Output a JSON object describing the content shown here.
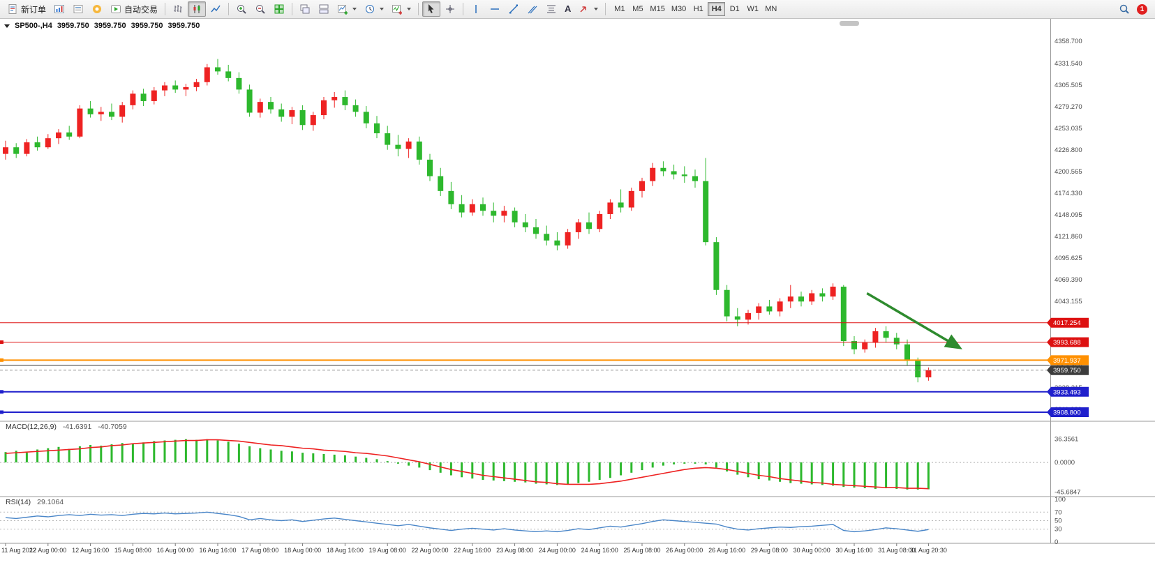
{
  "toolbar": {
    "new_order": "新订单",
    "autotrading": "自动交易",
    "text_tool": "A",
    "timeframes": [
      "M1",
      "M5",
      "M15",
      "M30",
      "H1",
      "H4",
      "D1",
      "W1",
      "MN"
    ],
    "active_timeframe": "H4",
    "notification": "1"
  },
  "header": {
    "symbol": "SP500-,H4",
    "open": "3959.750",
    "high": "3959.750",
    "low": "3959.750",
    "close": "3959.750"
  },
  "price_scale": {
    "labels": [
      "4358.700",
      "4331.540",
      "4305.505",
      "4279.270",
      "4253.035",
      "4226.800",
      "4200.565",
      "4174.330",
      "4148.095",
      "4121.860",
      "4095.625",
      "4069.390",
      "4043.155",
      "4016.920",
      "3990.685",
      "3964.450",
      "3938.215",
      "3911.980"
    ]
  },
  "price_lines": [
    {
      "price": 4017.254,
      "label": "4017.254",
      "color": "#dd1111",
      "tag_bg": "#dd1111",
      "width": 1,
      "style": "solid",
      "marker": false
    },
    {
      "price": 3993.688,
      "label": "3993.688",
      "color": "#dd1111",
      "tag_bg": "#dd1111",
      "width": 1,
      "style": "solid",
      "marker": true
    },
    {
      "price": 3971.937,
      "label": "3971.937",
      "color": "#ff9000",
      "tag_bg": "#ff9000",
      "width": 2,
      "style": "solid",
      "marker": true
    },
    {
      "price": 3965.65,
      "label": "",
      "color": "#333333",
      "tag_bg": "",
      "width": 1,
      "style": "solid",
      "marker": false
    },
    {
      "price": 3959.75,
      "label": "3959.750",
      "color": "#909090",
      "tag_bg": "#3c3c3c",
      "width": 1,
      "style": "dash",
      "marker": false
    },
    {
      "price": 3933.493,
      "label": "3933.493",
      "color": "#2020cc",
      "tag_bg": "#2020cc",
      "width": 2,
      "style": "solid",
      "marker": true
    },
    {
      "price": 3908.8,
      "label": "3908.800",
      "color": "#2020cc",
      "tag_bg": "#2020cc",
      "width": 2,
      "style": "solid",
      "marker": true
    }
  ],
  "chart_data": {
    "main": {
      "type": "candlestick",
      "symbol": "SP500-",
      "timeframe": "H4",
      "ylim": [
        3908.8,
        4358.7
      ],
      "up_color": "#ee2222",
      "down_color": "#2db82d",
      "time_labels": [
        "11 Aug 2022",
        "12 Aug 00:00",
        "12 Aug 16:00",
        "15 Aug 08:00",
        "16 Aug 00:00",
        "16 Aug 16:00",
        "17 Aug 08:00",
        "18 Aug 00:00",
        "18 Aug 16:00",
        "19 Aug 08:00",
        "22 Aug 00:00",
        "22 Aug 16:00",
        "23 Aug 08:00",
        "24 Aug 00:00",
        "24 Aug 16:00",
        "25 Aug 08:00",
        "26 Aug 00:00",
        "26 Aug 16:00",
        "29 Aug 08:00",
        "30 Aug 00:00",
        "30 Aug 16:00",
        "31 Aug 08:00",
        "31 Aug 20:30"
      ],
      "ohlc": [
        [
          4222,
          4238,
          4215,
          4230
        ],
        [
          4230,
          4235,
          4217,
          4222
        ],
        [
          4222,
          4240,
          4219,
          4236
        ],
        [
          4236,
          4243,
          4226,
          4230
        ],
        [
          4230,
          4246,
          4228,
          4241
        ],
        [
          4241,
          4252,
          4234,
          4248
        ],
        [
          4248,
          4256,
          4239,
          4243
        ],
        [
          4243,
          4281,
          4241,
          4277
        ],
        [
          4277,
          4286,
          4266,
          4270
        ],
        [
          4270,
          4279,
          4262,
          4273
        ],
        [
          4273,
          4283,
          4263,
          4267
        ],
        [
          4267,
          4285,
          4260,
          4281
        ],
        [
          4281,
          4299,
          4276,
          4295
        ],
        [
          4295,
          4301,
          4280,
          4286
        ],
        [
          4286,
          4303,
          4282,
          4299
        ],
        [
          4299,
          4309,
          4292,
          4305
        ],
        [
          4305,
          4311,
          4296,
          4300
        ],
        [
          4300,
          4307,
          4292,
          4303
        ],
        [
          4303,
          4313,
          4298,
          4309
        ],
        [
          4309,
          4331,
          4305,
          4327
        ],
        [
          4327,
          4337,
          4318,
          4322
        ],
        [
          4322,
          4330,
          4310,
          4314
        ],
        [
          4314,
          4321,
          4295,
          4300
        ],
        [
          4300,
          4306,
          4267,
          4272
        ],
        [
          4272,
          4289,
          4266,
          4285
        ],
        [
          4285,
          4291,
          4271,
          4276
        ],
        [
          4276,
          4283,
          4261,
          4267
        ],
        [
          4267,
          4279,
          4258,
          4275
        ],
        [
          4275,
          4281,
          4251,
          4257
        ],
        [
          4257,
          4273,
          4250,
          4269
        ],
        [
          4269,
          4291,
          4264,
          4287
        ],
        [
          4287,
          4297,
          4278,
          4291
        ],
        [
          4291,
          4299,
          4275,
          4281
        ],
        [
          4281,
          4288,
          4267,
          4273
        ],
        [
          4273,
          4280,
          4253,
          4259
        ],
        [
          4259,
          4268,
          4241,
          4247
        ],
        [
          4247,
          4256,
          4227,
          4233
        ],
        [
          4233,
          4245,
          4219,
          4228
        ],
        [
          4228,
          4241,
          4217,
          4237
        ],
        [
          4237,
          4243,
          4209,
          4215
        ],
        [
          4215,
          4222,
          4189,
          4195
        ],
        [
          4195,
          4205,
          4171,
          4177
        ],
        [
          4177,
          4188,
          4155,
          4161
        ],
        [
          4161,
          4172,
          4145,
          4151
        ],
        [
          4151,
          4167,
          4147,
          4161
        ],
        [
          4161,
          4169,
          4147,
          4153
        ],
        [
          4153,
          4163,
          4139,
          4147
        ],
        [
          4147,
          4159,
          4139,
          4153
        ],
        [
          4153,
          4157,
          4133,
          4139
        ],
        [
          4139,
          4149,
          4127,
          4133
        ],
        [
          4133,
          4143,
          4119,
          4125
        ],
        [
          4125,
          4135,
          4111,
          4117
        ],
        [
          4117,
          4127,
          4105,
          4111
        ],
        [
          4111,
          4131,
          4107,
          4127
        ],
        [
          4127,
          4143,
          4119,
          4139
        ],
        [
          4139,
          4151,
          4125,
          4131
        ],
        [
          4131,
          4153,
          4127,
          4149
        ],
        [
          4149,
          4167,
          4143,
          4163
        ],
        [
          4163,
          4179,
          4151,
          4157
        ],
        [
          4157,
          4181,
          4153,
          4177
        ],
        [
          4177,
          4193,
          4169,
          4189
        ],
        [
          4189,
          4211,
          4183,
          4205
        ],
        [
          4205,
          4213,
          4195,
          4201
        ],
        [
          4201,
          4209,
          4191,
          4197
        ],
        [
          4197,
          4207,
          4187,
          4195
        ],
        [
          4195,
          4203,
          4181,
          4189
        ],
        [
          4189,
          4217,
          4111,
          4115
        ],
        [
          4115,
          4121,
          4051,
          4057
        ],
        [
          4057,
          4063,
          4019,
          4025
        ],
        [
          4025,
          4035,
          4013,
          4021
        ],
        [
          4021,
          4033,
          4015,
          4029
        ],
        [
          4029,
          4041,
          4021,
          4037
        ],
        [
          4037,
          4045,
          4027,
          4031
        ],
        [
          4031,
          4047,
          4025,
          4043
        ],
        [
          4043,
          4063,
          4035,
          4049
        ],
        [
          4049,
          4055,
          4037,
          4043
        ],
        [
          4043,
          4057,
          4039,
          4053
        ],
        [
          4053,
          4059,
          4043,
          4049
        ],
        [
          4049,
          4065,
          4045,
          4061
        ],
        [
          4061,
          4063,
          3989,
          3995
        ],
        [
          3995,
          4001,
          3979,
          3985
        ],
        [
          3985,
          3997,
          3981,
          3993
        ],
        [
          3993,
          4011,
          3987,
          4007
        ],
        [
          4007,
          4013,
          3993,
          3999
        ],
        [
          3999,
          4005,
          3985,
          3991
        ],
        [
          3991,
          3997,
          3965,
          3971
        ],
        [
          3971,
          3975,
          3945,
          3951
        ],
        [
          3951,
          3963,
          3947,
          3959.75
        ]
      ],
      "annotation_arrow": {
        "from_bar": 81.2,
        "from_price": 4053,
        "to_bar": 89.8,
        "to_price": 3988,
        "color": "#2e8b2e"
      }
    },
    "macd": {
      "type": "bar+line",
      "label": "MACD(12,26,9)",
      "value_main": "-41.6391",
      "value_signal": "-40.7059",
      "histogram_color": "#2db82d",
      "signal_color": "#ee2222",
      "scale_labels": [
        "36.3561",
        "0.0000",
        "-45.6847"
      ],
      "scale_values": [
        36.3561,
        0,
        -45.6847
      ],
      "histogram": [
        16,
        18,
        15,
        20,
        22,
        24,
        21,
        25,
        27,
        26,
        28,
        30,
        29,
        31,
        33,
        34,
        35,
        36,
        35,
        36,
        34,
        32,
        29,
        25,
        22,
        20,
        18,
        17,
        15,
        14,
        13,
        12,
        11,
        9,
        7,
        5,
        2,
        -2,
        -5,
        -8,
        -12,
        -16,
        -20,
        -23,
        -25,
        -27,
        -28,
        -29,
        -30,
        -31,
        -33,
        -34,
        -35,
        -34,
        -32,
        -30,
        -27,
        -24,
        -20,
        -16,
        -12,
        -8,
        -5,
        -3,
        -2,
        -2,
        -3,
        -8,
        -14,
        -19,
        -23,
        -26,
        -28,
        -30,
        -32,
        -33,
        -34,
        -35,
        -36,
        -38,
        -39,
        -40,
        -41,
        -40,
        -41,
        -42,
        -42,
        -41.64
      ],
      "signal": [
        14,
        15,
        16,
        17,
        18,
        19,
        20,
        21,
        23,
        24,
        26,
        27,
        29,
        30,
        31,
        32,
        33,
        34,
        34,
        35,
        35,
        34,
        33,
        31,
        29,
        27,
        26,
        24,
        22,
        21,
        19,
        18,
        17,
        15,
        14,
        12,
        10,
        7,
        4,
        1,
        -3,
        -7,
        -11,
        -14,
        -17,
        -20,
        -22,
        -24,
        -26,
        -28,
        -30,
        -31,
        -33,
        -34,
        -34,
        -34,
        -33,
        -31,
        -29,
        -26,
        -23,
        -20,
        -17,
        -14,
        -11,
        -9,
        -8,
        -9,
        -11,
        -14,
        -17,
        -20,
        -22,
        -25,
        -27,
        -29,
        -31,
        -32,
        -34,
        -35,
        -36,
        -37,
        -38,
        -39,
        -39,
        -40,
        -40,
        -40.71
      ]
    },
    "rsi": {
      "type": "line",
      "label": "RSI(14)",
      "value": "29.1064",
      "line_color": "#4a86c8",
      "levels": [
        70,
        50,
        30
      ],
      "scale_labels": [
        "100",
        "70",
        "50",
        "30",
        "0"
      ],
      "values": [
        57,
        55,
        58,
        61,
        59,
        62,
        64,
        62,
        65,
        63,
        64,
        62,
        65,
        67,
        66,
        68,
        66,
        67,
        68,
        70,
        67,
        64,
        60,
        52,
        55,
        52,
        50,
        52,
        48,
        51,
        54,
        56,
        53,
        50,
        47,
        44,
        41,
        38,
        41,
        37,
        33,
        30,
        27,
        30,
        32,
        30,
        28,
        31,
        28,
        26,
        24,
        26,
        24,
        27,
        31,
        29,
        33,
        37,
        35,
        39,
        43,
        48,
        52,
        50,
        48,
        46,
        44,
        42,
        35,
        30,
        28,
        31,
        33,
        35,
        34,
        36,
        37,
        39,
        41,
        27,
        24,
        26,
        29,
        33,
        31,
        28,
        25,
        29.1
      ]
    }
  }
}
